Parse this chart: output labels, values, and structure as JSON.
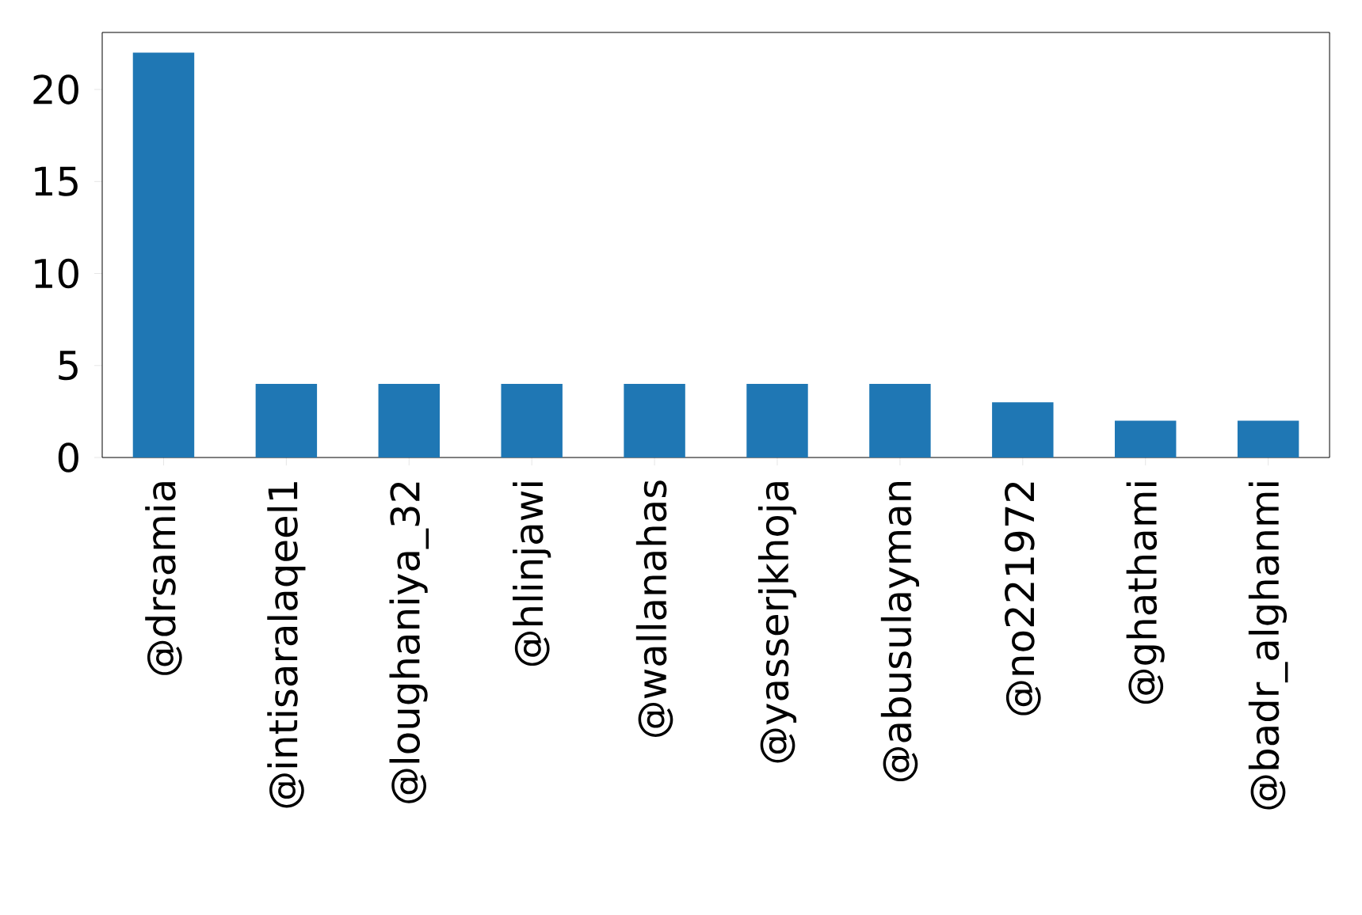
{
  "chart_data": {
    "type": "bar",
    "categories": [
      "@drsamia",
      "@intisaralaqeel1",
      "@loughaniya_32",
      "@hlinjawi",
      "@wallanahas",
      "@yasserjkhoja",
      "@abusulayman",
      "@no221972",
      "@ghathami",
      "@badr_alghanmi"
    ],
    "values": [
      22,
      4,
      4,
      4,
      4,
      4,
      4,
      3,
      2,
      2
    ],
    "color": "#1f77b4",
    "ylim": [
      0,
      23.1
    ],
    "yticks": [
      0,
      5,
      10,
      15,
      20
    ]
  }
}
